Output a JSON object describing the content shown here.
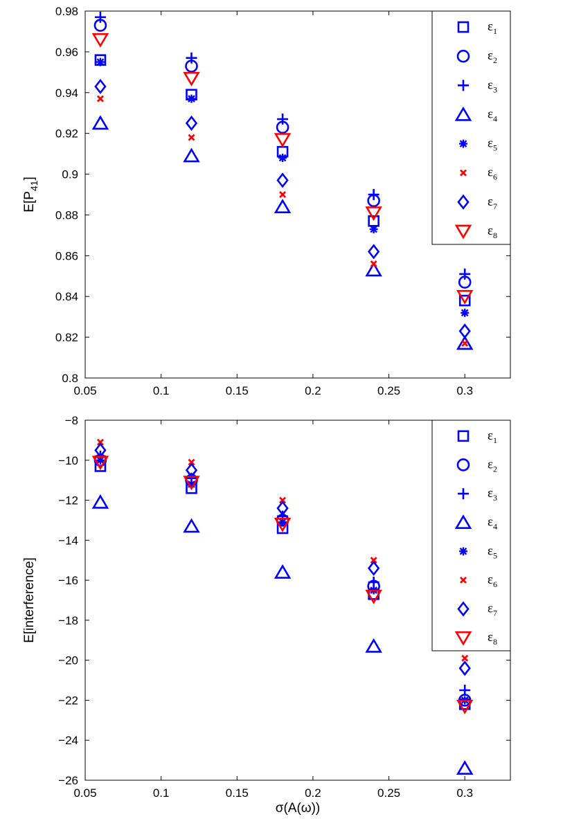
{
  "chart_data": [
    {
      "type": "scatter",
      "title": "",
      "xlabel": "",
      "ylabel": "E[P",
      "ylabel_sub": "41",
      "ylabel_close": "]",
      "xlim": [
        0.05,
        0.33
      ],
      "ylim": [
        0.8,
        0.98
      ],
      "xticks": [
        0.05,
        0.1,
        0.15,
        0.2,
        0.25,
        0.3
      ],
      "xtick_labels": [
        "0.05",
        "0.1",
        "0.15",
        "0.2",
        "0.25",
        "0.3"
      ],
      "yticks": [
        0.8,
        0.82,
        0.84,
        0.86,
        0.88,
        0.9,
        0.92,
        0.94,
        0.96,
        0.98
      ],
      "ytick_labels": [
        "0.8",
        "0.82",
        "0.84",
        "0.86",
        "0.88",
        "0.9",
        "0.92",
        "0.94",
        "0.96",
        "0.98"
      ],
      "legend_position": "top-right",
      "x": [
        0.06,
        0.12,
        0.18,
        0.24,
        0.3
      ],
      "series": [
        {
          "name": "ε",
          "sub": "1",
          "marker": "square",
          "color": "#0000ff",
          "values": [
            0.956,
            0.939,
            0.911,
            0.877,
            0.838
          ]
        },
        {
          "name": "ε",
          "sub": "2",
          "marker": "circle",
          "color": "#0000ff",
          "values": [
            0.973,
            0.953,
            0.923,
            0.887,
            0.847
          ]
        },
        {
          "name": "ε",
          "sub": "3",
          "marker": "plus",
          "color": "#0000ff",
          "values": [
            0.977,
            0.957,
            0.927,
            0.89,
            0.851
          ]
        },
        {
          "name": "ε",
          "sub": "4",
          "marker": "triangle",
          "color": "#0000ff",
          "values": [
            0.925,
            0.909,
            0.884,
            0.853,
            0.817
          ]
        },
        {
          "name": "ε",
          "sub": "5",
          "marker": "star",
          "color": "#0000ff",
          "values": [
            0.955,
            0.937,
            0.908,
            0.873,
            0.832
          ]
        },
        {
          "name": "ε",
          "sub": "6",
          "marker": "x",
          "color": "#ff0000",
          "values": [
            0.937,
            0.918,
            0.89,
            0.856,
            0.817
          ]
        },
        {
          "name": "ε",
          "sub": "7",
          "marker": "diamond",
          "color": "#0000ff",
          "values": [
            0.943,
            0.925,
            0.897,
            0.862,
            0.823
          ]
        },
        {
          "name": "ε",
          "sub": "8",
          "marker": "triangle-down",
          "color": "#ff0000",
          "values": [
            0.966,
            0.947,
            0.917,
            0.881,
            0.84
          ]
        }
      ]
    },
    {
      "type": "scatter",
      "title": "",
      "xlabel": "σ(A(ω))",
      "ylabel": "E[interference]",
      "xlim": [
        0.05,
        0.33
      ],
      "ylim": [
        -26,
        -8
      ],
      "xticks": [
        0.05,
        0.1,
        0.15,
        0.2,
        0.25,
        0.3
      ],
      "xtick_labels": [
        "0.05",
        "0.1",
        "0.15",
        "0.2",
        "0.25",
        "0.3"
      ],
      "yticks": [
        -26,
        -24,
        -22,
        -20,
        -18,
        -16,
        -14,
        -12,
        -10,
        -8
      ],
      "ytick_labels": [
        "−26",
        "−24",
        "−22",
        "−20",
        "−18",
        "−16",
        "−14",
        "−12",
        "−10",
        "−8"
      ],
      "legend_position": "top-right",
      "x": [
        0.06,
        0.12,
        0.18,
        0.24,
        0.3
      ],
      "series": [
        {
          "name": "ε",
          "sub": "1",
          "marker": "square",
          "color": "#0000ff",
          "values": [
            -10.3,
            -11.4,
            -13.4,
            -16.7,
            -22.2
          ]
        },
        {
          "name": "ε",
          "sub": "2",
          "marker": "circle",
          "color": "#0000ff",
          "values": [
            -10.0,
            -11.0,
            -13.0,
            -16.3,
            -22.0
          ]
        },
        {
          "name": "ε",
          "sub": "3",
          "marker": "plus",
          "color": "#0000ff",
          "values": [
            -9.8,
            -10.9,
            -12.8,
            -16.1,
            -21.5
          ]
        },
        {
          "name": "ε",
          "sub": "4",
          "marker": "triangle",
          "color": "#0000ff",
          "values": [
            -12.1,
            -13.3,
            -15.6,
            -19.3,
            -25.4
          ]
        },
        {
          "name": "ε",
          "sub": "5",
          "marker": "star",
          "color": "#0000ff",
          "values": [
            -10.0,
            -11.2,
            -13.1,
            -16.5,
            -22.0
          ]
        },
        {
          "name": "ε",
          "sub": "6",
          "marker": "x",
          "color": "#ff0000",
          "values": [
            -9.1,
            -10.1,
            -12.0,
            -15.0,
            -19.9
          ]
        },
        {
          "name": "ε",
          "sub": "7",
          "marker": "diamond",
          "color": "#0000ff",
          "values": [
            -9.5,
            -10.5,
            -12.4,
            -15.4,
            -20.4
          ]
        },
        {
          "name": "ε",
          "sub": "8",
          "marker": "triangle-down",
          "color": "#ff0000",
          "values": [
            -10.1,
            -11.1,
            -13.2,
            -16.8,
            -22.3
          ]
        }
      ]
    }
  ]
}
